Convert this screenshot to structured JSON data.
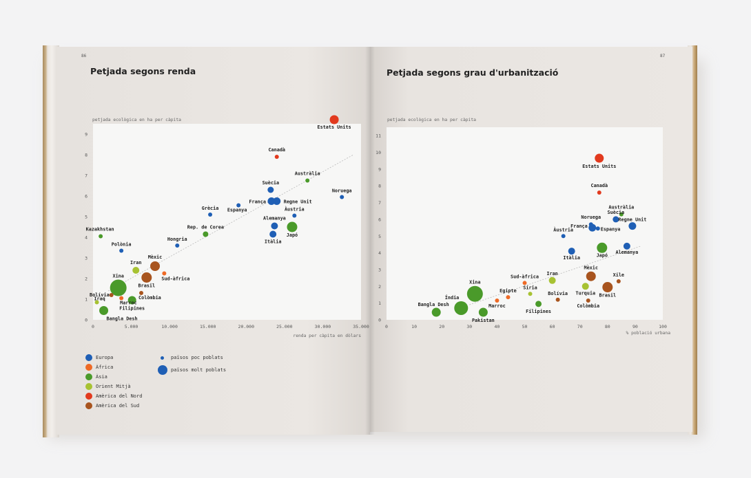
{
  "left_page": {
    "page_number": "86",
    "title": "Petjada segons renda"
  },
  "right_page": {
    "page_number": "87",
    "title": "Petjada segons grau d'urbanització"
  },
  "legend": {
    "regions": [
      {
        "label": "Europa",
        "color": "#1f5fb5"
      },
      {
        "label": "Àfrica",
        "color": "#ee6a26"
      },
      {
        "label": "Àsia",
        "color": "#4a9a2a"
      },
      {
        "label": "Orient Mitjà",
        "color": "#a7c232"
      },
      {
        "label": "Amèrica del Nord",
        "color": "#e23a1e"
      },
      {
        "label": "Amèrica del Sud",
        "color": "#a8541e"
      }
    ],
    "sizes": [
      {
        "label": "països poc poblats",
        "size": "small"
      },
      {
        "label": "països molt poblats",
        "size": "large"
      }
    ]
  },
  "chart_data": [
    {
      "type": "scatter",
      "title": "Petjada segons renda",
      "ylabel": "petjada ecològica en ha per càpita",
      "xlabel": "renda per càpita en dòlars",
      "xlim": [
        0,
        35000
      ],
      "ylim": [
        0,
        9.5
      ],
      "xticks": [
        "0",
        "5.000",
        "10.000",
        "15.000",
        "20.000",
        "25.000",
        "30.000",
        "35.000"
      ],
      "xtick_values": [
        0,
        5000,
        10000,
        15000,
        20000,
        25000,
        30000,
        35000
      ],
      "yticks": [
        "0",
        "1",
        "2",
        "3",
        "4",
        "5",
        "6",
        "7",
        "8",
        "9"
      ],
      "ytick_values": [
        0,
        1,
        2,
        3,
        4,
        5,
        6,
        7,
        8,
        9
      ],
      "trend_line": [
        [
          2000,
          1.4
        ],
        [
          34000,
          8.0
        ]
      ],
      "points": [
        {
          "label": "Estats Units",
          "x": 31500,
          "y": 9.7,
          "region": "Amèrica del Nord",
          "size": 6.5
        },
        {
          "label": "Canadà",
          "x": 24000,
          "y": 7.9,
          "region": "Amèrica del Nord",
          "size": 3
        },
        {
          "label": "Austràlia",
          "x": 28000,
          "y": 6.75,
          "region": "Àsia",
          "size": 3
        },
        {
          "label": "Noruega",
          "x": 32500,
          "y": 5.95,
          "region": "Europa",
          "size": 3
        },
        {
          "label": "Suècia",
          "x": 23200,
          "y": 6.3,
          "region": "Europa",
          "size": 4.5
        },
        {
          "label": "França",
          "x": 23300,
          "y": 5.75,
          "region": "Europa",
          "size": 5.5
        },
        {
          "label": "Regne Unit",
          "x": 24000,
          "y": 5.75,
          "region": "Europa",
          "size": 5.5
        },
        {
          "label": "Espanya",
          "x": 19000,
          "y": 5.55,
          "region": "Europa",
          "size": 3
        },
        {
          "label": "Grècia",
          "x": 15300,
          "y": 5.1,
          "region": "Europa",
          "size": 3
        },
        {
          "label": "Àustria",
          "x": 26300,
          "y": 5.05,
          "region": "Europa",
          "size": 3
        },
        {
          "label": "Alemanya",
          "x": 23700,
          "y": 4.55,
          "region": "Europa",
          "size": 5
        },
        {
          "label": "Itàlia",
          "x": 23500,
          "y": 4.15,
          "region": "Europa",
          "size": 5
        },
        {
          "label": "Japó",
          "x": 26000,
          "y": 4.5,
          "region": "Àsia",
          "size": 7.5
        },
        {
          "label": "Rep. de Corea",
          "x": 14700,
          "y": 4.15,
          "region": "Àsia",
          "size": 4
        },
        {
          "label": "Kazakhstan",
          "x": 1000,
          "y": 4.05,
          "region": "Àsia",
          "size": 3
        },
        {
          "label": "Hongria",
          "x": 11000,
          "y": 3.6,
          "region": "Europa",
          "size": 3
        },
        {
          "label": "Polònia",
          "x": 3700,
          "y": 3.35,
          "region": "Europa",
          "size": 3
        },
        {
          "label": "Mèxic",
          "x": 8100,
          "y": 2.6,
          "region": "Amèrica del Sud",
          "size": 7
        },
        {
          "label": "Iran",
          "x": 5600,
          "y": 2.4,
          "region": "Orient Mitjà",
          "size": 5
        },
        {
          "label": "Sud-àfrica",
          "x": 9300,
          "y": 2.25,
          "region": "Àfrica",
          "size": 3
        },
        {
          "label": "Brasil",
          "x": 7000,
          "y": 2.05,
          "region": "Amèrica del Sud",
          "size": 7.5
        },
        {
          "label": "Xina",
          "x": 3300,
          "y": 1.55,
          "region": "Àsia",
          "size": 12
        },
        {
          "label": "Bolívia",
          "x": 2400,
          "y": 1.2,
          "region": "Amèrica del Sud",
          "size": 3
        },
        {
          "label": "Marroc",
          "x": 3700,
          "y": 1.05,
          "region": "Àfrica",
          "size": 3
        },
        {
          "label": "Colòmbia",
          "x": 6300,
          "y": 1.3,
          "region": "Amèrica del Sud",
          "size": 3
        },
        {
          "label": "Filipines",
          "x": 5100,
          "y": 0.95,
          "region": "Àsia",
          "size": 6
        },
        {
          "label": "Iraq",
          "x": 500,
          "y": 0.85,
          "region": "Orient Mitjà",
          "size": 3
        },
        {
          "label": "Bangla Desh",
          "x": 1400,
          "y": 0.45,
          "region": "Àsia",
          "size": 6.5
        }
      ]
    },
    {
      "type": "scatter",
      "title": "Petjada segons grau d'urbanització",
      "ylabel": "petjada ecològica en ha per càpita",
      "xlabel": "% població urbana",
      "xlim": [
        0,
        100
      ],
      "ylim": [
        0,
        11.5
      ],
      "xticks": [
        "0",
        "10",
        "20",
        "30",
        "40",
        "50",
        "60",
        "70",
        "80",
        "90",
        "100"
      ],
      "xtick_values": [
        0,
        10,
        20,
        30,
        40,
        50,
        60,
        70,
        80,
        90,
        100
      ],
      "yticks": [
        "0",
        "1",
        "2",
        "3",
        "4",
        "5",
        "6",
        "7",
        "8",
        "9",
        "10",
        "11"
      ],
      "ytick_values": [
        0,
        1,
        2,
        3,
        4,
        5,
        6,
        7,
        8,
        9,
        10,
        11
      ],
      "trend_line": [
        [
          30,
          0.9
        ],
        [
          92,
          4.4
        ]
      ],
      "points": [
        {
          "label": "Estats Units",
          "x": 77,
          "y": 9.65,
          "region": "Amèrica del Nord",
          "size": 6.5
        },
        {
          "label": "Canadà",
          "x": 77,
          "y": 7.6,
          "region": "Amèrica del Nord",
          "size": 3
        },
        {
          "label": "Austràlia",
          "x": 85,
          "y": 6.3,
          "region": "Àsia",
          "size": 3
        },
        {
          "label": "Noruega",
          "x": 74,
          "y": 5.7,
          "region": "Europa",
          "size": 3
        },
        {
          "label": "Suècia",
          "x": 83,
          "y": 6.0,
          "region": "Europa",
          "size": 4.5
        },
        {
          "label": "Regne Unit",
          "x": 89,
          "y": 5.6,
          "region": "Europa",
          "size": 5.5
        },
        {
          "label": "França",
          "x": 74.5,
          "y": 5.5,
          "region": "Europa",
          "size": 5.5
        },
        {
          "label": "Espanya",
          "x": 76.5,
          "y": 5.45,
          "region": "Europa",
          "size": 3
        },
        {
          "label": "Àustria",
          "x": 64,
          "y": 5.0,
          "region": "Europa",
          "size": 3
        },
        {
          "label": "Itàlia",
          "x": 67,
          "y": 4.1,
          "region": "Europa",
          "size": 5
        },
        {
          "label": "Japó",
          "x": 78,
          "y": 4.3,
          "region": "Àsia",
          "size": 7.5
        },
        {
          "label": "Alemanya",
          "x": 87,
          "y": 4.4,
          "region": "Europa",
          "size": 5
        },
        {
          "label": "Mèxic",
          "x": 74,
          "y": 2.6,
          "region": "Amèrica del Sud",
          "size": 7
        },
        {
          "label": "Xile",
          "x": 84,
          "y": 2.3,
          "region": "Amèrica del Sud",
          "size": 3
        },
        {
          "label": "Turquia",
          "x": 72,
          "y": 2.0,
          "region": "Orient Mitjà",
          "size": 5
        },
        {
          "label": "Brasil",
          "x": 80,
          "y": 1.95,
          "region": "Amèrica del Sud",
          "size": 7.5
        },
        {
          "label": "Colòmbia",
          "x": 73,
          "y": 1.15,
          "region": "Amèrica del Sud",
          "size": 3
        },
        {
          "label": "Bolívia",
          "x": 62,
          "y": 1.2,
          "region": "Amèrica del Sud",
          "size": 3
        },
        {
          "label": "Iran",
          "x": 60,
          "y": 2.35,
          "region": "Orient Mitjà",
          "size": 5
        },
        {
          "label": "Síria",
          "x": 52,
          "y": 1.55,
          "region": "Orient Mitjà",
          "size": 3
        },
        {
          "label": "Sud-àfrica",
          "x": 50,
          "y": 2.2,
          "region": "Àfrica",
          "size": 3
        },
        {
          "label": "Egipte",
          "x": 44,
          "y": 1.35,
          "region": "Àfrica",
          "size": 3
        },
        {
          "label": "Marroc",
          "x": 40,
          "y": 1.15,
          "region": "Àfrica",
          "size": 3
        },
        {
          "label": "Filipines",
          "x": 55,
          "y": 0.95,
          "region": "Àsia",
          "size": 4.5
        },
        {
          "label": "Índia",
          "x": 27,
          "y": 0.7,
          "region": "Àsia",
          "size": 10
        },
        {
          "label": "Xina",
          "x": 32,
          "y": 1.55,
          "region": "Àsia",
          "size": 11.5
        },
        {
          "label": "Pakistan",
          "x": 35,
          "y": 0.45,
          "region": "Àsia",
          "size": 6.5
        },
        {
          "label": "Bangla Desh",
          "x": 18,
          "y": 0.45,
          "region": "Àsia",
          "size": 6.5
        }
      ]
    }
  ]
}
